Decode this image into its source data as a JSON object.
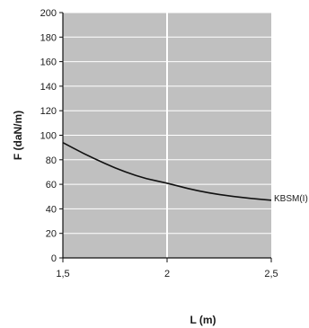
{
  "chart_data": {
    "type": "line",
    "xlabel": "L (m)",
    "ylabel": "F (daN/m)",
    "xlim": [
      1.5,
      2.5
    ],
    "ylim": [
      0,
      200
    ],
    "x_ticks": [
      1.5,
      2,
      2.5
    ],
    "x_tick_labels": [
      "1,5",
      "2",
      "2,5"
    ],
    "y_ticks": [
      0,
      20,
      40,
      60,
      80,
      100,
      120,
      140,
      160,
      180,
      200
    ],
    "y_tick_labels": [
      "0",
      "20",
      "40",
      "60",
      "80",
      "100",
      "120",
      "140",
      "160",
      "180",
      "200"
    ],
    "grid": true,
    "series": [
      {
        "name": "KBSM(I)",
        "x": [
          1.5,
          1.6,
          1.7,
          1.8,
          1.9,
          2.0,
          2.1,
          2.2,
          2.3,
          2.4,
          2.5
        ],
        "y": [
          94,
          85,
          77,
          70,
          64.5,
          61,
          56.5,
          53,
          50.5,
          48.5,
          47
        ]
      }
    ],
    "colors": {
      "plot_background": "#c0c0c0",
      "grid_line": "#ffffff",
      "series_line": "#111111",
      "axis_line": "#111111"
    }
  }
}
